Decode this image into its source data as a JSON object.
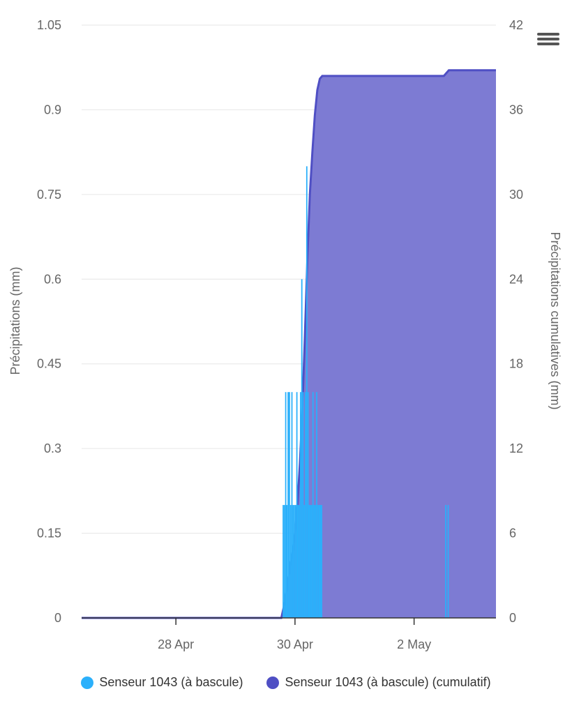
{
  "colors": {
    "series_rain": "#2BB0FB",
    "series_cumul_fill": "#7D7BD3",
    "series_cumul_line": "#4F4FC4",
    "grid": "#e6e6e6",
    "axis": "#333333"
  },
  "menu": {
    "icon": "hamburger-menu-icon"
  },
  "chart_data": {
    "type": "line",
    "y_axis_left": {
      "title": "Précipitations (mm)",
      "ticks": [
        "0",
        "0.15",
        "0.3",
        "0.45",
        "0.6",
        "0.75",
        "0.9",
        "1.05"
      ],
      "range": [
        0,
        1.05
      ]
    },
    "y_axis_right": {
      "title": "Précipitations cumulatives (mm)",
      "ticks": [
        "0",
        "6",
        "12",
        "18",
        "24",
        "30",
        "36",
        "42"
      ],
      "range": [
        0,
        42
      ]
    },
    "x_axis": {
      "ticks": [
        "28 Apr",
        "30 Apr",
        "2 May"
      ],
      "range": [
        "2024-04-26T10:00",
        "2024-05-03T09:00"
      ]
    },
    "grid": true,
    "legend_position": "bottom-center",
    "series": [
      {
        "name": "Senseur 1043 (à bascule)",
        "type": "column",
        "axis": "left",
        "points": [
          [
            "2024-04-29T19:00",
            0.2
          ],
          [
            "2024-04-29T19:30",
            0.2
          ],
          [
            "2024-04-29T20:00",
            0.4
          ],
          [
            "2024-04-29T20:30",
            0.2
          ],
          [
            "2024-04-29T21:00",
            0.4
          ],
          [
            "2024-04-29T21:30",
            0.4
          ],
          [
            "2024-04-29T22:00",
            0.2
          ],
          [
            "2024-04-29T22:30",
            0.4
          ],
          [
            "2024-04-29T23:00",
            0.2
          ],
          [
            "2024-04-29T23:30",
            0.2
          ],
          [
            "2024-04-30T00:00",
            0.2
          ],
          [
            "2024-04-30T00:30",
            0.4
          ],
          [
            "2024-04-30T01:00",
            0.2
          ],
          [
            "2024-04-30T01:30",
            0.2
          ],
          [
            "2024-04-30T02:00",
            0.4
          ],
          [
            "2024-04-30T02:30",
            0.6
          ],
          [
            "2024-04-30T03:00",
            0.4
          ],
          [
            "2024-04-30T03:30",
            0.2
          ],
          [
            "2024-04-30T04:00",
            0.4
          ],
          [
            "2024-04-30T04:30",
            0.8
          ],
          [
            "2024-04-30T05:00",
            0.4
          ],
          [
            "2024-04-30T05:30",
            0.2
          ],
          [
            "2024-04-30T06:00",
            0.2
          ],
          [
            "2024-04-30T06:30",
            0.2
          ],
          [
            "2024-04-30T07:00",
            0.4
          ],
          [
            "2024-04-30T07:30",
            0.2
          ],
          [
            "2024-04-30T08:00",
            0.2
          ],
          [
            "2024-04-30T08:30",
            0.4
          ],
          [
            "2024-04-30T09:00",
            0.2
          ],
          [
            "2024-04-30T09:30",
            0.2
          ],
          [
            "2024-04-30T10:00",
            0.2
          ],
          [
            "2024-04-30T10:30",
            0.2
          ],
          [
            "2024-05-02T12:30",
            0.2
          ],
          [
            "2024-05-02T13:30",
            0.2
          ]
        ]
      },
      {
        "name": "Senseur 1043 (à bascule) (cumulatif)",
        "type": "area",
        "axis": "right",
        "points": [
          [
            "2024-04-26T10:00",
            0
          ],
          [
            "2024-04-29T18:30",
            0
          ],
          [
            "2024-04-29T19:00",
            0.4
          ],
          [
            "2024-04-29T20:00",
            1.2
          ],
          [
            "2024-04-29T21:00",
            2.4
          ],
          [
            "2024-04-29T22:00",
            3.6
          ],
          [
            "2024-04-29T23:00",
            4.6
          ],
          [
            "2024-04-30T00:00",
            6.0
          ],
          [
            "2024-04-30T01:00",
            8.0
          ],
          [
            "2024-04-30T02:00",
            11.0
          ],
          [
            "2024-04-30T03:00",
            15.0
          ],
          [
            "2024-04-30T04:00",
            20.0
          ],
          [
            "2024-04-30T05:00",
            25.5
          ],
          [
            "2024-04-30T06:00",
            30.0
          ],
          [
            "2024-04-30T07:00",
            33.0
          ],
          [
            "2024-04-30T08:00",
            35.6
          ],
          [
            "2024-04-30T09:00",
            37.4
          ],
          [
            "2024-04-30T10:00",
            38.2
          ],
          [
            "2024-04-30T11:00",
            38.4
          ],
          [
            "2024-05-02T12:00",
            38.4
          ],
          [
            "2024-05-02T13:00",
            38.6
          ],
          [
            "2024-05-02T14:00",
            38.8
          ],
          [
            "2024-05-03T09:00",
            38.8
          ]
        ]
      }
    ]
  }
}
